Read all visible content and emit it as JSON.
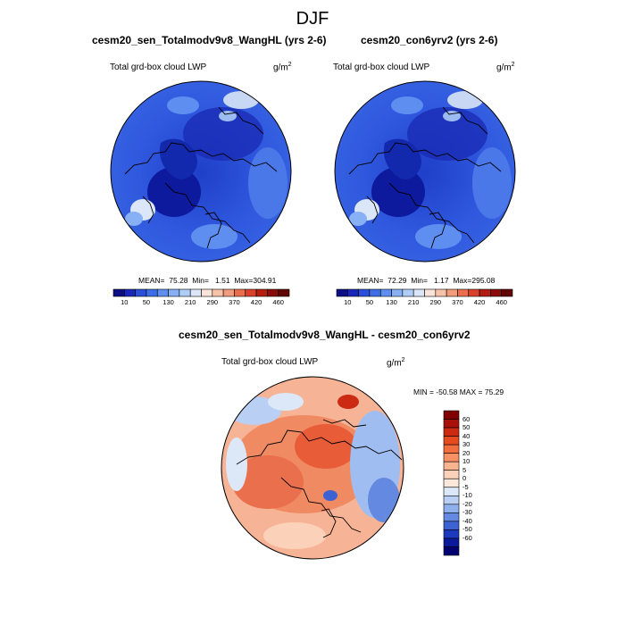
{
  "title": "DJF",
  "palette_main": [
    "#0d0f87",
    "#1a28b8",
    "#2b4fd9",
    "#3f6fe6",
    "#5e8ff0",
    "#87b0f5",
    "#b0cdf7",
    "#dbe7f9",
    "#fae3d8",
    "#f6c3a9",
    "#f19d7c",
    "#ea6f4c",
    "#d9412a",
    "#b51d10",
    "#8a0d0a",
    "#610505"
  ],
  "palette_diff": [
    "#800000",
    "#a8110a",
    "#cc2a12",
    "#e84a1f",
    "#f36e3e",
    "#f79066",
    "#fab38f",
    "#fbd2b9",
    "#fbe8da",
    "#dce8f8",
    "#b9cff3",
    "#8eb0ec",
    "#6489e0",
    "#3d62d4",
    "#1c3abf",
    "#0a1a9a",
    "#000070"
  ],
  "panels": [
    {
      "title": "cesm20_sen_Totalmodv9v8_WangHL (yrs 2-6)",
      "variable": "Total grd-box cloud LWP",
      "units": "g/m",
      "units_exp": "2",
      "mean_label": "MEAN=",
      "mean": "75.28",
      "min_label": "Min=",
      "min": "1.51",
      "max_label": "Max=",
      "max": "304.91"
    },
    {
      "title": "cesm20_con6yrv2 (yrs 2-6)",
      "variable": "Total grd-box cloud LWP",
      "units": "g/m",
      "units_exp": "2",
      "mean_label": "MEAN=",
      "mean": "72.29",
      "min_label": "Min=",
      "min": "1.17",
      "max_label": "Max=",
      "max": "295.08"
    }
  ],
  "colorbar_ticks": [
    "10",
    "50",
    "130",
    "210",
    "290",
    "370",
    "420",
    "460"
  ],
  "diff": {
    "title": "cesm20_sen_Totalmodv9v8_WangHL - cesm20_con6yrv2",
    "variable": "Total grd-box cloud LWP",
    "units": "g/m",
    "units_exp": "2",
    "minmax": "MIN = -50.58 MAX =  75.29",
    "colorbar_ticks": [
      "60",
      "50",
      "40",
      "30",
      "20",
      "10",
      "5",
      "0",
      "-5",
      "-10",
      "-20",
      "-30",
      "-40",
      "-50",
      "-60"
    ]
  },
  "chart_data": [
    {
      "type": "heatmap",
      "title": "cesm20_sen_Totalmodv9v8_WangHL (yrs 2-6)",
      "variable": "Total grd-box cloud LWP",
      "units": "g/m2",
      "projection": "polar stereographic (north pole)",
      "stats": {
        "mean": 75.28,
        "min": 1.51,
        "max": 304.91
      },
      "colorbar_levels": [
        10,
        50,
        130,
        210,
        290,
        370,
        420,
        460
      ]
    },
    {
      "type": "heatmap",
      "title": "cesm20_con6yrv2 (yrs 2-6)",
      "variable": "Total grd-box cloud LWP",
      "units": "g/m2",
      "projection": "polar stereographic (north pole)",
      "stats": {
        "mean": 72.29,
        "min": 1.17,
        "max": 295.08
      },
      "colorbar_levels": [
        10,
        50,
        130,
        210,
        290,
        370,
        420,
        460
      ]
    },
    {
      "type": "heatmap",
      "title": "cesm20_sen_Totalmodv9v8_WangHL - cesm20_con6yrv2",
      "variable": "Total grd-box cloud LWP",
      "units": "g/m2",
      "projection": "polar stereographic (north pole)",
      "stats": {
        "min": -50.58,
        "max": 75.29
      },
      "colorbar_levels": [
        60,
        50,
        40,
        30,
        20,
        10,
        5,
        0,
        -5,
        -10,
        -20,
        -30,
        -40,
        -50,
        -60
      ]
    }
  ]
}
